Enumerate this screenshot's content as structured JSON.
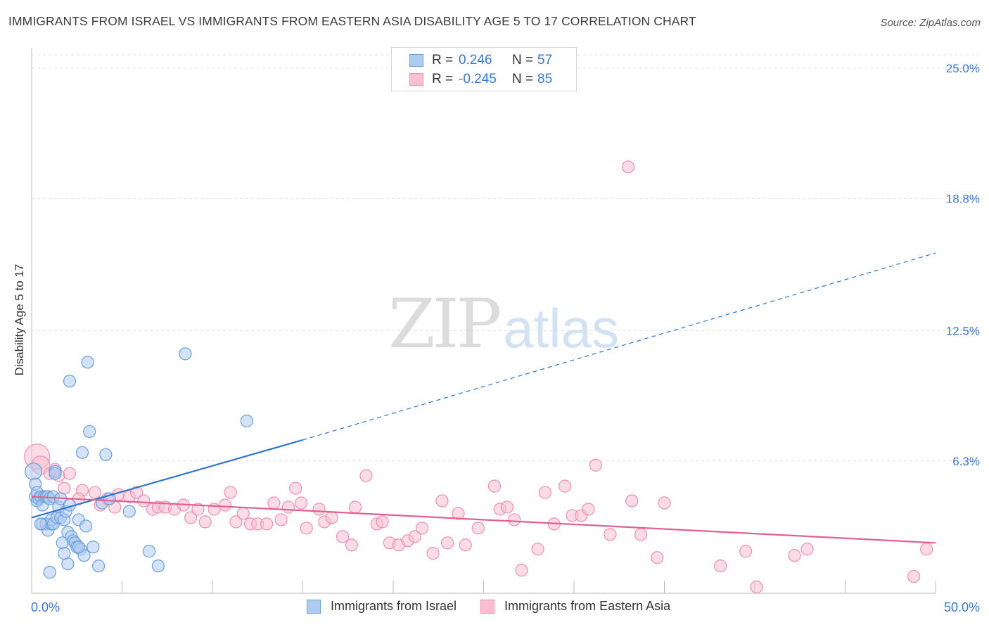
{
  "title": "IMMIGRANTS FROM ISRAEL VS IMMIGRANTS FROM EASTERN ASIA DISABILITY AGE 5 TO 17 CORRELATION CHART",
  "source": "Source: ZipAtlas.com",
  "watermark": {
    "zip": "ZIP",
    "atlas": "atlas"
  },
  "legend": {
    "rows": [
      {
        "r_label": "R =",
        "r_value": "0.246",
        "n_label": "N =",
        "n_value": "57"
      },
      {
        "r_label": "R =",
        "r_value": "-0.245",
        "n_label": "N =",
        "n_value": "85"
      }
    ]
  },
  "colors": {
    "blue_fill": "#aecbf0",
    "blue_stroke": "#6a9fdc",
    "blue_line": "#2f74cc",
    "pink_fill": "#f7bfd1",
    "pink_stroke": "#ee8fb0",
    "pink_line": "#e0608f",
    "grid": "#dddddd",
    "tick_text": "#3a78c9"
  },
  "chart_data": {
    "type": "scatter",
    "title": "IMMIGRANTS FROM ISRAEL VS IMMIGRANTS FROM EASTERN ASIA DISABILITY AGE 5 TO 17 CORRELATION CHART",
    "xlabel": "",
    "ylabel": "Disability Age 5 to 17",
    "xlim": [
      0,
      50
    ],
    "ylim": [
      0,
      26
    ],
    "x_tick_labels": [
      "0.0%",
      "50.0%"
    ],
    "y_ticks": [
      6.3,
      12.5,
      18.8,
      25.0
    ],
    "y_tick_labels": [
      "6.3%",
      "12.5%",
      "18.8%",
      "25.0%"
    ],
    "series": [
      {
        "name": "Immigrants from Israel",
        "color": "blue",
        "R": 0.246,
        "N": 57,
        "trend": {
          "x0": 0,
          "y0": 3.6,
          "x_solid_end": 15,
          "y_solid_end": 7.3,
          "x1": 50,
          "y1": 16.2
        },
        "points": [
          [
            0.1,
            5.8
          ],
          [
            0.2,
            5.2
          ],
          [
            0.2,
            4.6
          ],
          [
            0.3,
            4.4
          ],
          [
            0.3,
            4.8
          ],
          [
            0.4,
            4.5
          ],
          [
            0.5,
            4.6
          ],
          [
            0.6,
            4.2
          ],
          [
            0.6,
            3.3
          ],
          [
            0.7,
            4.6
          ],
          [
            0.8,
            4.6
          ],
          [
            0.8,
            3.3
          ],
          [
            0.9,
            3.0
          ],
          [
            0.9,
            4.6
          ],
          [
            1.0,
            4.5
          ],
          [
            1.1,
            3.3
          ],
          [
            1.1,
            3.5
          ],
          [
            1.2,
            3.3
          ],
          [
            1.2,
            4.6
          ],
          [
            1.3,
            5.8
          ],
          [
            1.4,
            3.6
          ],
          [
            1.5,
            4.1
          ],
          [
            1.6,
            3.6
          ],
          [
            1.6,
            4.5
          ],
          [
            1.7,
            2.4
          ],
          [
            1.8,
            3.5
          ],
          [
            1.9,
            3.9
          ],
          [
            2.0,
            1.4
          ],
          [
            2.0,
            2.9
          ],
          [
            2.1,
            4.2
          ],
          [
            2.1,
            10.1
          ],
          [
            2.2,
            2.7
          ],
          [
            2.3,
            2.5
          ],
          [
            2.4,
            2.4
          ],
          [
            2.5,
            2.2
          ],
          [
            2.6,
            3.5
          ],
          [
            2.7,
            2.1
          ],
          [
            2.8,
            6.7
          ],
          [
            2.9,
            1.8
          ],
          [
            3.0,
            3.2
          ],
          [
            3.1,
            11.0
          ],
          [
            3.2,
            7.7
          ],
          [
            3.4,
            2.2
          ],
          [
            3.7,
            1.3
          ],
          [
            3.9,
            4.3
          ],
          [
            4.1,
            6.6
          ],
          [
            4.3,
            4.5
          ],
          [
            5.4,
            3.9
          ],
          [
            6.5,
            2.0
          ],
          [
            7.0,
            1.3
          ],
          [
            8.5,
            11.4
          ],
          [
            11.9,
            8.2
          ],
          [
            1.3,
            5.7
          ],
          [
            0.5,
            3.3
          ],
          [
            1.0,
            1.0
          ],
          [
            1.8,
            1.9
          ],
          [
            2.6,
            2.2
          ]
        ]
      },
      {
        "name": "Immigrants from Eastern Asia",
        "color": "pink",
        "R": -0.245,
        "N": 85,
        "trend": {
          "x0": 0,
          "y0": 4.6,
          "x1": 50,
          "y1": 2.4
        },
        "points": [
          [
            0.3,
            6.5
          ],
          [
            0.5,
            6.1
          ],
          [
            1.0,
            5.7
          ],
          [
            1.5,
            5.6
          ],
          [
            1.8,
            5.0
          ],
          [
            2.1,
            5.7
          ],
          [
            2.8,
            4.9
          ],
          [
            3.5,
            4.8
          ],
          [
            3.8,
            4.2
          ],
          [
            4.2,
            4.5
          ],
          [
            4.6,
            4.1
          ],
          [
            4.8,
            4.7
          ],
          [
            5.4,
            4.6
          ],
          [
            5.8,
            4.8
          ],
          [
            6.2,
            4.4
          ],
          [
            6.7,
            4.0
          ],
          [
            7.0,
            4.1
          ],
          [
            7.4,
            4.1
          ],
          [
            7.9,
            4.0
          ],
          [
            8.4,
            4.2
          ],
          [
            8.8,
            3.6
          ],
          [
            9.2,
            4.0
          ],
          [
            9.6,
            3.4
          ],
          [
            10.1,
            4.0
          ],
          [
            10.7,
            4.2
          ],
          [
            11.0,
            4.8
          ],
          [
            11.3,
            3.4
          ],
          [
            11.7,
            3.8
          ],
          [
            12.1,
            3.3
          ],
          [
            12.5,
            3.3
          ],
          [
            13.0,
            3.3
          ],
          [
            13.4,
            4.3
          ],
          [
            13.8,
            3.5
          ],
          [
            14.2,
            4.1
          ],
          [
            14.6,
            5.0
          ],
          [
            14.9,
            4.3
          ],
          [
            15.2,
            3.1
          ],
          [
            15.9,
            4.0
          ],
          [
            16.2,
            3.4
          ],
          [
            16.6,
            3.6
          ],
          [
            17.2,
            2.7
          ],
          [
            17.7,
            2.3
          ],
          [
            17.9,
            4.1
          ],
          [
            18.5,
            5.6
          ],
          [
            19.1,
            3.3
          ],
          [
            19.4,
            3.4
          ],
          [
            19.8,
            2.4
          ],
          [
            20.3,
            2.3
          ],
          [
            20.8,
            2.5
          ],
          [
            21.2,
            2.7
          ],
          [
            21.6,
            3.1
          ],
          [
            22.2,
            1.9
          ],
          [
            22.7,
            4.4
          ],
          [
            23.0,
            2.4
          ],
          [
            23.6,
            3.8
          ],
          [
            24.0,
            2.3
          ],
          [
            24.7,
            3.1
          ],
          [
            25.6,
            5.1
          ],
          [
            25.9,
            4.0
          ],
          [
            26.3,
            4.1
          ],
          [
            26.7,
            3.5
          ],
          [
            27.1,
            1.1
          ],
          [
            28.0,
            2.1
          ],
          [
            28.4,
            4.8
          ],
          [
            28.9,
            3.3
          ],
          [
            29.5,
            5.1
          ],
          [
            29.9,
            3.7
          ],
          [
            30.4,
            3.7
          ],
          [
            30.8,
            4.0
          ],
          [
            31.2,
            6.1
          ],
          [
            32.0,
            2.8
          ],
          [
            33.0,
            20.3
          ],
          [
            33.2,
            4.4
          ],
          [
            33.7,
            2.8
          ],
          [
            34.6,
            1.7
          ],
          [
            35.0,
            4.3
          ],
          [
            38.1,
            1.3
          ],
          [
            39.5,
            2.0
          ],
          [
            40.1,
            0.3
          ],
          [
            42.2,
            1.8
          ],
          [
            42.9,
            2.1
          ],
          [
            48.8,
            0.8
          ],
          [
            49.5,
            2.1
          ],
          [
            1.3,
            5.9
          ],
          [
            2.6,
            4.5
          ]
        ]
      }
    ]
  },
  "bottom_legend": [
    {
      "label": "Immigrants from Israel"
    },
    {
      "label": "Immigrants from Eastern Asia"
    }
  ]
}
